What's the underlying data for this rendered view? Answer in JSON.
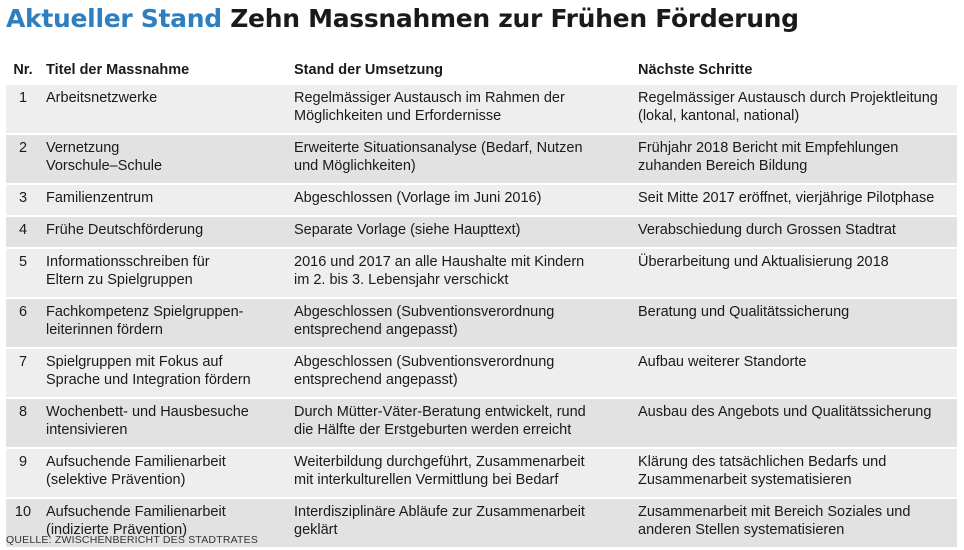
{
  "header": {
    "kicker": "Aktueller Stand",
    "title": "Zehn Massnahmen zur Frühen Förderung"
  },
  "table": {
    "columns": [
      "Nr.",
      "Titel der Massnahme",
      "Stand der Umsetzung",
      "Nächste Schritte"
    ],
    "rows": [
      {
        "nr": "1",
        "title": "Arbeitsnetzwerke",
        "status": "Regelmässiger Austausch im Rahmen der\nMöglichkeiten und Erfordernisse",
        "next": "Regelmässiger Austausch durch Projektleitung\n(lokal, kantonal, national)"
      },
      {
        "nr": "2",
        "title": "Vernetzung\nVorschule–Schule",
        "status": "Erweiterte Situationsanalyse (Bedarf, Nutzen\nund Möglichkeiten)",
        "next": "Frühjahr 2018 Bericht mit Empfehlungen\nzuhanden Bereich Bildung"
      },
      {
        "nr": "3",
        "title": "Familienzentrum",
        "status": "Abgeschlossen (Vorlage im Juni 2016)",
        "next": "Seit Mitte 2017 eröffnet, vierjährige Pilotphase"
      },
      {
        "nr": "4",
        "title": "Frühe Deutschförderung",
        "status": "Separate Vorlage (siehe Haupttext)",
        "next": "Verabschiedung durch Grossen Stadtrat"
      },
      {
        "nr": "5",
        "title": "Informationsschreiben für\nEltern zu Spielgruppen",
        "status": "2016 und 2017 an alle Haushalte mit Kindern\nim 2. bis 3. Lebensjahr verschickt",
        "next": "Überarbeitung und Aktualisierung 2018"
      },
      {
        "nr": "6",
        "title": "Fachkompetenz Spielgruppen-\nleiterinnen fördern",
        "status": "Abgeschlossen (Subventionsverordnung\nentsprechend angepasst)",
        "next": "Beratung und Qualitätssicherung"
      },
      {
        "nr": "7",
        "title": "Spielgruppen mit Fokus auf\nSprache und Integration fördern",
        "status": "Abgeschlossen (Subventionsverordnung\nentsprechend angepasst)",
        "next": "Aufbau weiterer Standorte"
      },
      {
        "nr": "8",
        "title": "Wochenbett- und Hausbesuche\nintensivieren",
        "status": "Durch Mütter-Väter-Beratung entwickelt, rund\ndie Hälfte der Erstgeburten werden erreicht",
        "next": "Ausbau des Angebots und Qualitätssicherung"
      },
      {
        "nr": "9",
        "title": "Aufsuchende Familienarbeit\n(selektive Prävention)",
        "status": "Weiterbildung durchgeführt, Zusammenarbeit\nmit interkulturellen Vermittlung bei Bedarf",
        "next": "Klärung des tatsächlichen Bedarfs und\nZusammenarbeit systematisieren"
      },
      {
        "nr": "10",
        "title": "Aufsuchende Familienarbeit\n(indizierte Prävention)",
        "status": "Interdisziplinäre Abläufe zur Zusammenarbeit\ngeklärt",
        "next": "Zusammenarbeit mit Bereich Soziales und\nanderen Stellen systematisieren"
      }
    ]
  },
  "source": "QUELLE: ZWISCHENBERICHT DES STADTRATES",
  "colors": {
    "kicker": "#2f7fc0",
    "row_shade_a": "#eeeeee",
    "row_shade_b": "#e2e2e2"
  }
}
